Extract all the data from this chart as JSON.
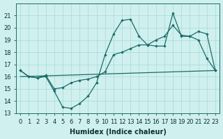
{
  "xlabel": "Humidex (Indice chaleur)",
  "x": [
    0,
    1,
    2,
    3,
    4,
    5,
    6,
    7,
    8,
    9,
    10,
    11,
    12,
    13,
    14,
    15,
    16,
    17,
    18,
    19,
    20,
    21,
    22,
    23
  ],
  "curve_dip": [
    16.5,
    16.0,
    15.9,
    16.0,
    14.8,
    13.5,
    13.4,
    13.8,
    14.4,
    15.5,
    17.8,
    19.5,
    20.6,
    20.7,
    19.3,
    18.6,
    18.5,
    18.5,
    21.2,
    19.3,
    19.3,
    19.0,
    17.5,
    16.5
  ],
  "curve_smooth": [
    16.5,
    16.0,
    15.9,
    16.1,
    15.0,
    15.1,
    15.5,
    15.7,
    15.8,
    16.0,
    16.4,
    17.8,
    18.0,
    18.3,
    18.6,
    18.6,
    19.0,
    19.3,
    20.2,
    19.4,
    19.3,
    19.7,
    19.5,
    16.5
  ],
  "baseline_x": [
    0,
    23
  ],
  "baseline_y": [
    16.0,
    16.5
  ],
  "ylim_min": 13,
  "ylim_max": 22,
  "xlim_min": -0.5,
  "xlim_max": 23.5,
  "bg_color": "#cff0ee",
  "line_color": "#1a6b6b",
  "grid_color": "#a8d8d5",
  "tick_fontsize": 6,
  "label_fontsize": 7,
  "yticks": [
    13,
    14,
    15,
    16,
    17,
    18,
    19,
    20,
    21
  ]
}
